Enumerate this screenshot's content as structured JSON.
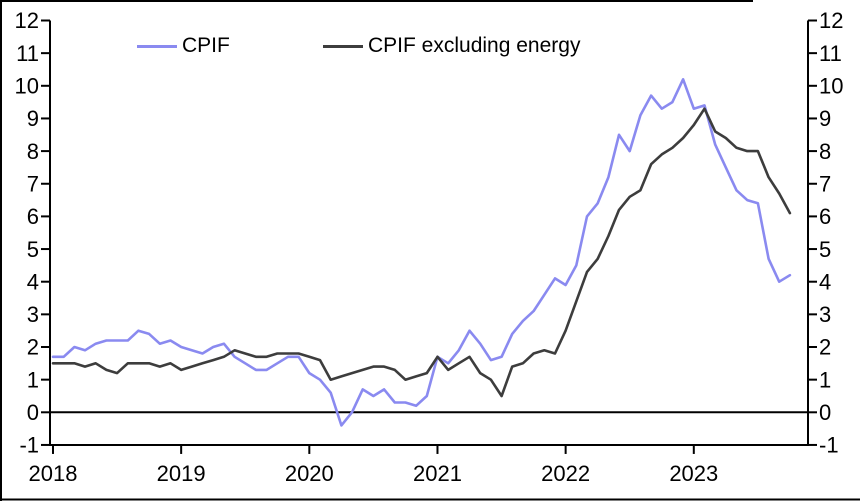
{
  "chart_data": {
    "type": "line",
    "title": "",
    "x_frequency": "monthly",
    "x_start": "2018-01",
    "x_end": "2023-10",
    "x_tick_labels": [
      "2018",
      "2019",
      "2020",
      "2021",
      "2022",
      "2023"
    ],
    "y_ticks": [
      -1,
      0,
      1,
      2,
      3,
      4,
      5,
      6,
      7,
      8,
      9,
      10,
      11,
      12
    ],
    "ylim": [
      -1,
      12
    ],
    "y_axis_sides": "both",
    "grid": false,
    "zero_line": true,
    "legend_position": "top",
    "axis_color": "#000000",
    "background_color": "#ffffff",
    "series": [
      {
        "name": "CPIF",
        "color": "#8a8af0",
        "values": [
          1.7,
          1.7,
          2.0,
          1.9,
          2.1,
          2.2,
          2.2,
          2.2,
          2.5,
          2.4,
          2.1,
          2.2,
          2.0,
          1.9,
          1.8,
          2.0,
          2.1,
          1.7,
          1.5,
          1.3,
          1.3,
          1.5,
          1.7,
          1.7,
          1.2,
          1.0,
          0.6,
          -0.4,
          0.0,
          0.7,
          0.5,
          0.7,
          0.3,
          0.3,
          0.2,
          0.5,
          1.7,
          1.5,
          1.9,
          2.5,
          2.1,
          1.6,
          1.7,
          2.4,
          2.8,
          3.1,
          3.6,
          4.1,
          3.9,
          4.5,
          6.0,
          6.4,
          7.2,
          8.5,
          8.0,
          9.1,
          9.7,
          9.3,
          9.5,
          10.2,
          9.3,
          9.4,
          8.2,
          7.5,
          6.8,
          6.5,
          6.4,
          4.7,
          4.0,
          4.2
        ]
      },
      {
        "name": "CPIF excluding energy",
        "color": "#3d3d3d",
        "values": [
          1.5,
          1.5,
          1.5,
          1.4,
          1.5,
          1.3,
          1.2,
          1.5,
          1.5,
          1.5,
          1.4,
          1.5,
          1.3,
          1.4,
          1.5,
          1.6,
          1.7,
          1.9,
          1.8,
          1.7,
          1.7,
          1.8,
          1.8,
          1.8,
          1.7,
          1.6,
          1.0,
          1.1,
          1.2,
          1.3,
          1.4,
          1.4,
          1.3,
          1.0,
          1.1,
          1.2,
          1.7,
          1.3,
          1.5,
          1.7,
          1.2,
          1.0,
          0.5,
          1.4,
          1.5,
          1.8,
          1.9,
          1.8,
          2.5,
          3.4,
          4.3,
          4.7,
          5.4,
          6.2,
          6.6,
          6.8,
          7.6,
          7.9,
          8.1,
          8.4,
          8.8,
          9.3,
          8.6,
          8.4,
          8.1,
          8.0,
          8.0,
          7.2,
          6.7,
          6.1
        ]
      }
    ]
  }
}
